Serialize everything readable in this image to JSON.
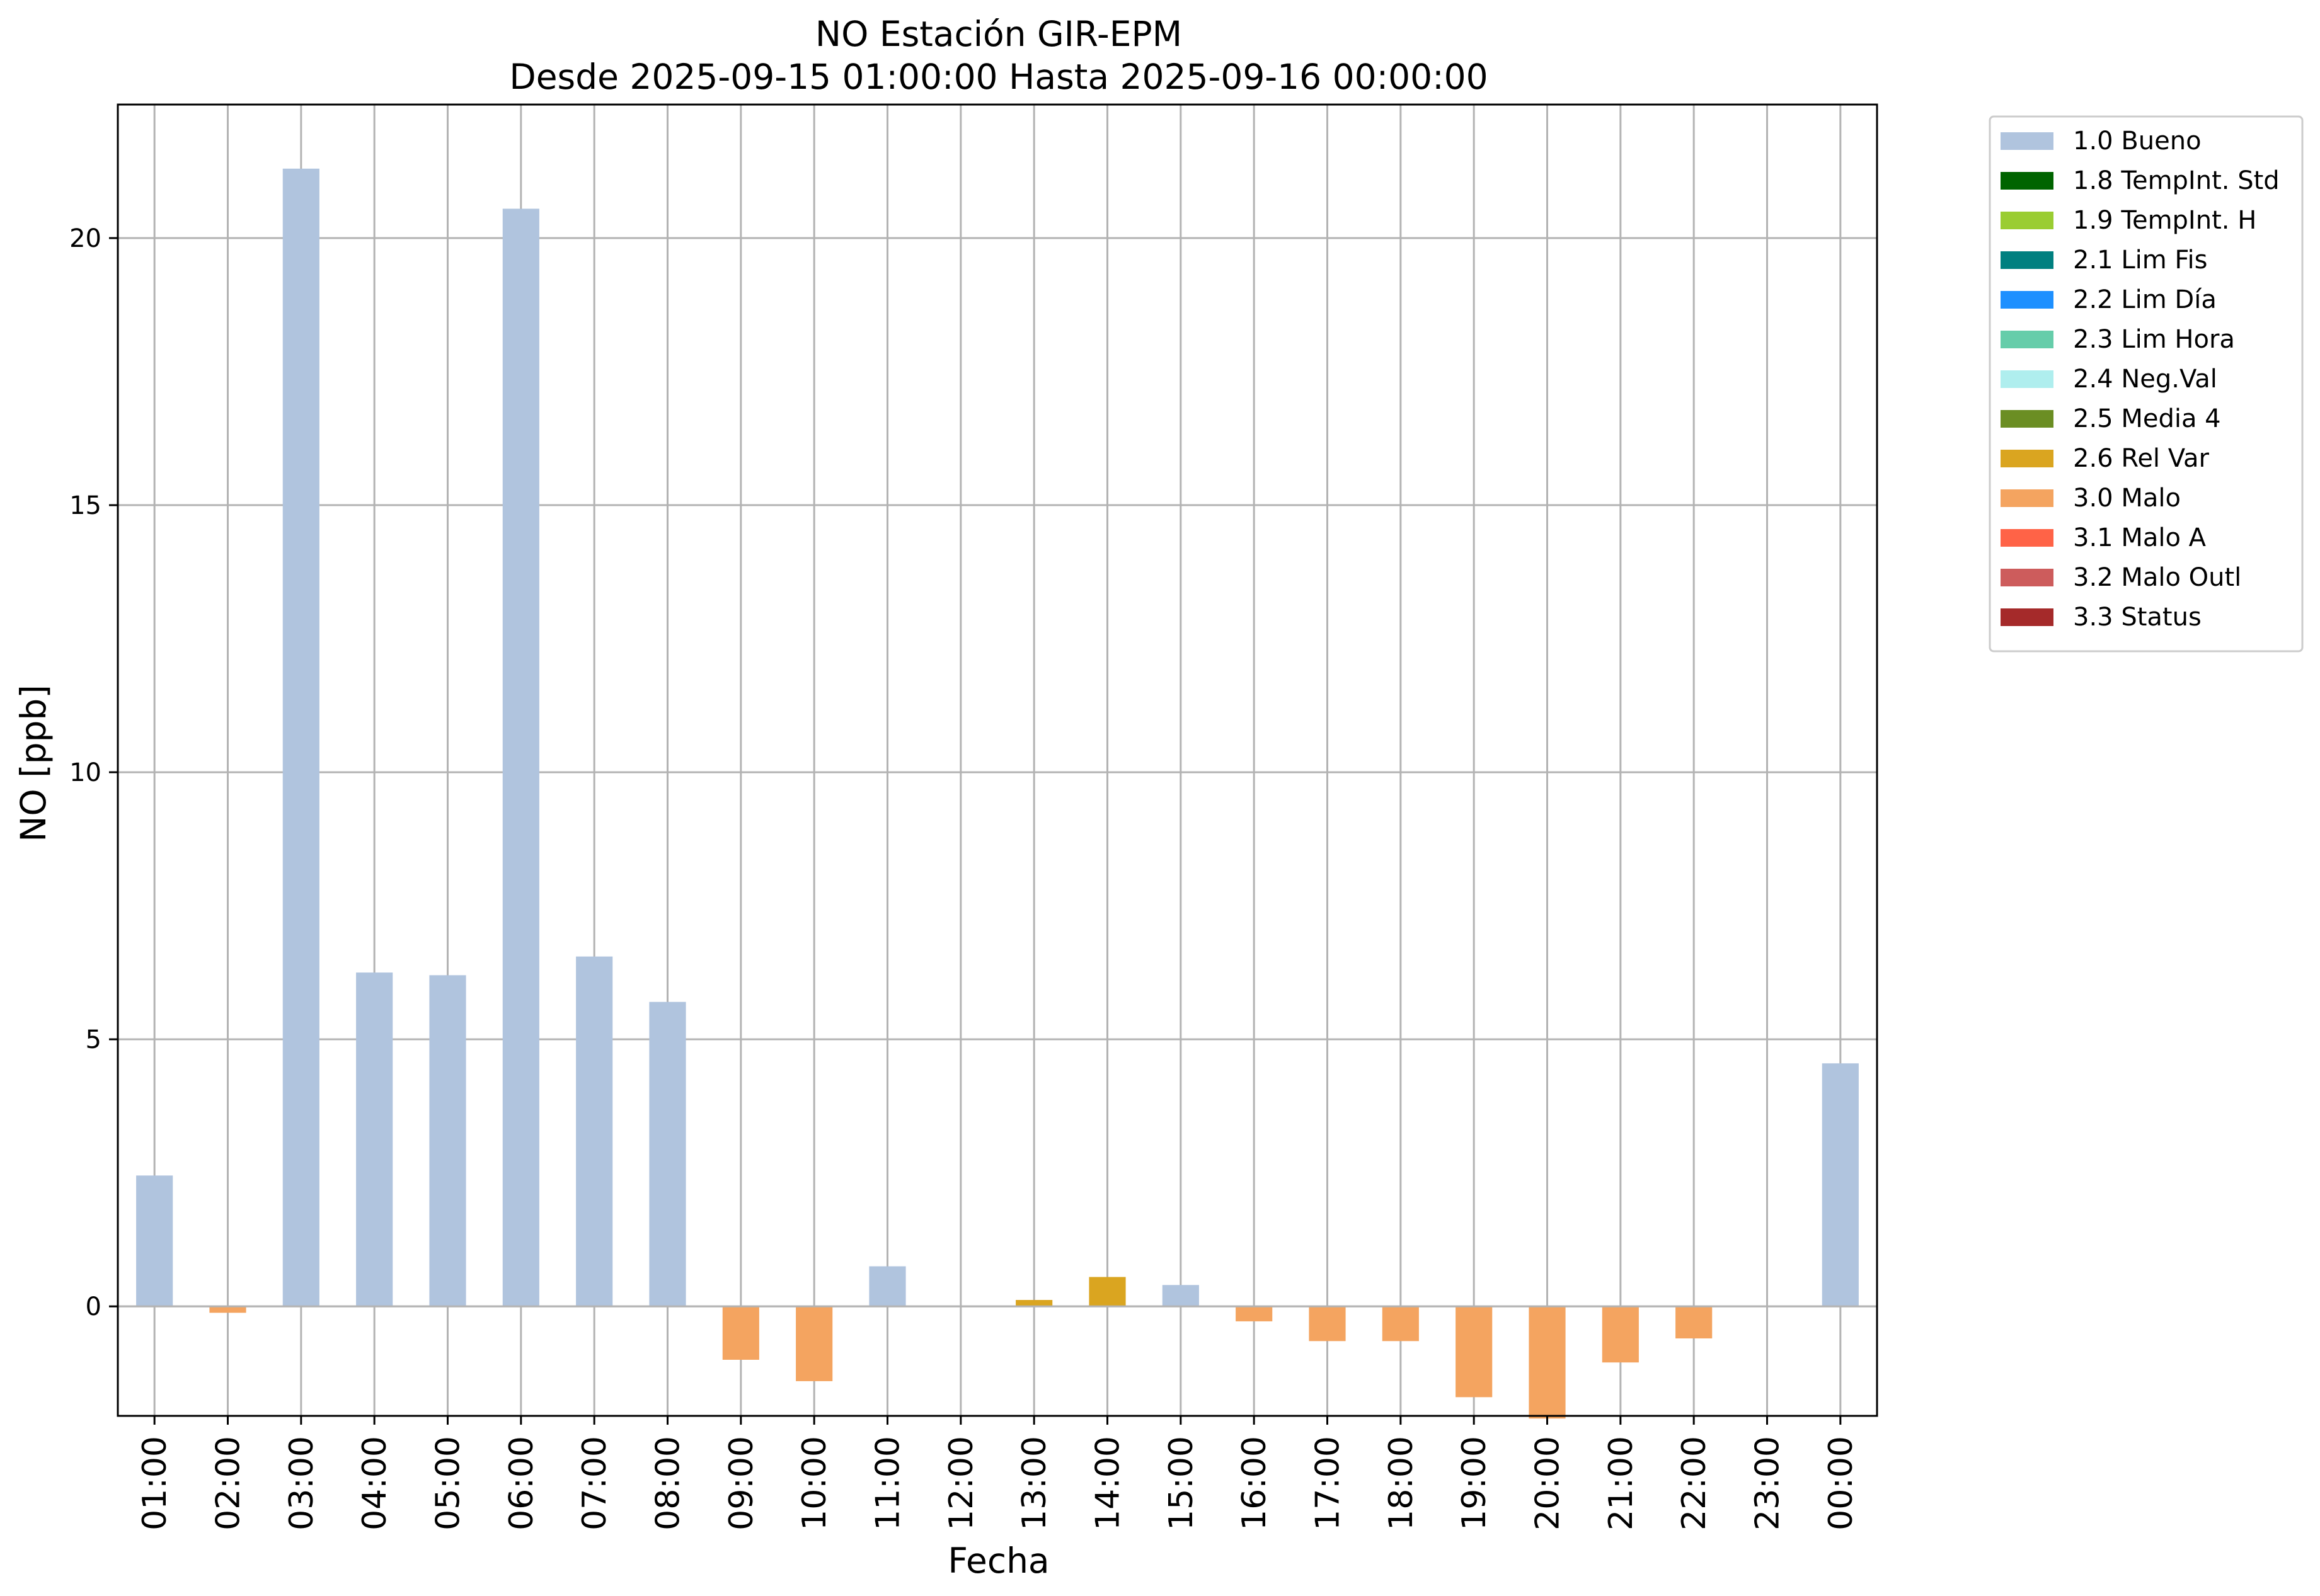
{
  "chart_data": {
    "type": "bar",
    "title": "NO Estación GIR-EPM",
    "subtitle": "Desde 2025-09-15 01:00:00 Hasta 2025-09-16 00:00:00",
    "xlabel": "Fecha",
    "ylabel": "NO [ppb]",
    "ylim": [
      -2.05,
      22.5
    ],
    "yticks": [
      0,
      5,
      10,
      15,
      20
    ],
    "grid": true,
    "legend_position": "outside-right",
    "categories": [
      "01:00",
      "02:00",
      "03:00",
      "04:00",
      "05:00",
      "06:00",
      "07:00",
      "08:00",
      "09:00",
      "10:00",
      "11:00",
      "12:00",
      "13:00",
      "14:00",
      "15:00",
      "16:00",
      "17:00",
      "18:00",
      "19:00",
      "20:00",
      "21:00",
      "22:00",
      "23:00",
      "00:00"
    ],
    "values": [
      2.45,
      -0.12,
      21.3,
      6.25,
      6.2,
      20.55,
      6.55,
      5.7,
      -1.0,
      -1.4,
      0.75,
      null,
      0.12,
      0.55,
      0.4,
      -0.28,
      -0.65,
      -0.65,
      -1.7,
      -2.1,
      -1.05,
      -0.6,
      null,
      4.55
    ],
    "flags": [
      "1.0 Bueno",
      "3.0 Malo",
      "1.0 Bueno",
      "1.0 Bueno",
      "1.0 Bueno",
      "1.0 Bueno",
      "1.0 Bueno",
      "1.0 Bueno",
      "3.0 Malo",
      "3.0 Malo",
      "1.0 Bueno",
      null,
      "2.6 Rel Var",
      "2.6 Rel Var",
      "1.0 Bueno",
      "3.0 Malo",
      "3.0 Malo",
      "3.0 Malo",
      "3.0 Malo",
      "3.0 Malo",
      "3.0 Malo",
      "3.0 Malo",
      null,
      "1.0 Bueno"
    ],
    "legend": [
      {
        "label": "1.0 Bueno",
        "color": "#b0c4de"
      },
      {
        "label": "1.8 TempInt. Std",
        "color": "#006400"
      },
      {
        "label": "1.9 TempInt. H",
        "color": "#9acd32"
      },
      {
        "label": "2.1 Lim Fis",
        "color": "#008080"
      },
      {
        "label": "2.2 Lim Día",
        "color": "#1e90ff"
      },
      {
        "label": "2.3 Lim Hora",
        "color": "#66cdaa"
      },
      {
        "label": "2.4 Neg.Val",
        "color": "#afeeee"
      },
      {
        "label": "2.5 Media 4",
        "color": "#6b8e23"
      },
      {
        "label": "2.6 Rel Var",
        "color": "#daa520"
      },
      {
        "label": "3.0 Malo",
        "color": "#f4a460"
      },
      {
        "label": "3.1 Malo A",
        "color": "#ff6347"
      },
      {
        "label": "3.2 Malo Outl",
        "color": "#cd5c5c"
      },
      {
        "label": "3.3 Status",
        "color": "#a52a2a"
      }
    ]
  }
}
